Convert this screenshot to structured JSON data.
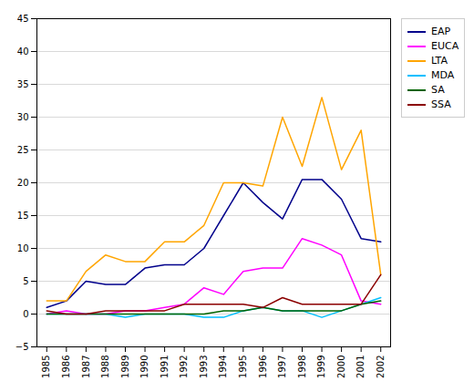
{
  "chart_data": {
    "type": "line",
    "x": [
      1985,
      1986,
      1987,
      1988,
      1989,
      1990,
      1991,
      1992,
      1993,
      1994,
      1995,
      1996,
      1997,
      1998,
      1999,
      2000,
      2001,
      2002
    ],
    "series": [
      {
        "name": "EAP",
        "color": "#00008B",
        "values": [
          1.0,
          2.0,
          5.0,
          4.5,
          4.5,
          7.0,
          7.5,
          7.5,
          10.0,
          15.0,
          20.0,
          17.0,
          14.5,
          20.5,
          20.5,
          17.5,
          11.5,
          11.0
        ]
      },
      {
        "name": "EUCA",
        "color": "#FF00FF",
        "values": [
          0.0,
          0.5,
          0.0,
          0.0,
          0.5,
          0.5,
          1.0,
          1.5,
          4.0,
          3.0,
          6.5,
          7.0,
          7.0,
          11.5,
          10.5,
          9.0,
          2.0,
          1.5
        ]
      },
      {
        "name": "LTA",
        "color": "#FFA500",
        "values": [
          2.0,
          2.0,
          6.5,
          9.0,
          8.0,
          8.0,
          11.0,
          11.0,
          13.5,
          20.0,
          20.0,
          19.5,
          30.0,
          22.5,
          33.0,
          22.0,
          28.0,
          6.0
        ]
      },
      {
        "name": "MDA",
        "color": "#00BFFF",
        "values": [
          0.0,
          0.0,
          0.0,
          0.0,
          -0.5,
          0.0,
          0.0,
          0.0,
          -0.5,
          -0.5,
          0.5,
          1.0,
          0.5,
          0.5,
          -0.5,
          0.5,
          1.5,
          2.5
        ]
      },
      {
        "name": "SA",
        "color": "#006400",
        "values": [
          0.0,
          0.0,
          0.0,
          0.0,
          0.0,
          0.0,
          0.0,
          0.0,
          0.0,
          0.5,
          0.5,
          1.0,
          0.5,
          0.5,
          0.5,
          0.5,
          1.5,
          2.0
        ]
      },
      {
        "name": "SSA",
        "color": "#8B0000",
        "values": [
          0.5,
          0.0,
          0.0,
          0.5,
          0.5,
          0.5,
          0.5,
          1.5,
          1.5,
          1.5,
          1.5,
          1.0,
          2.5,
          1.5,
          1.5,
          1.5,
          1.5,
          6.0
        ]
      }
    ],
    "xlim": [
      1984.5,
      2002.5
    ],
    "xticks": [
      1985,
      1986,
      1987,
      1988,
      1989,
      1990,
      1991,
      1992,
      1993,
      1994,
      1995,
      1996,
      1997,
      1998,
      1999,
      2000,
      2001,
      2002
    ],
    "ylim": [
      -5,
      45
    ],
    "yticks": [
      -5,
      0,
      5,
      10,
      15,
      20,
      25,
      30,
      35,
      40,
      45
    ],
    "grid": "y",
    "legend": "right"
  }
}
